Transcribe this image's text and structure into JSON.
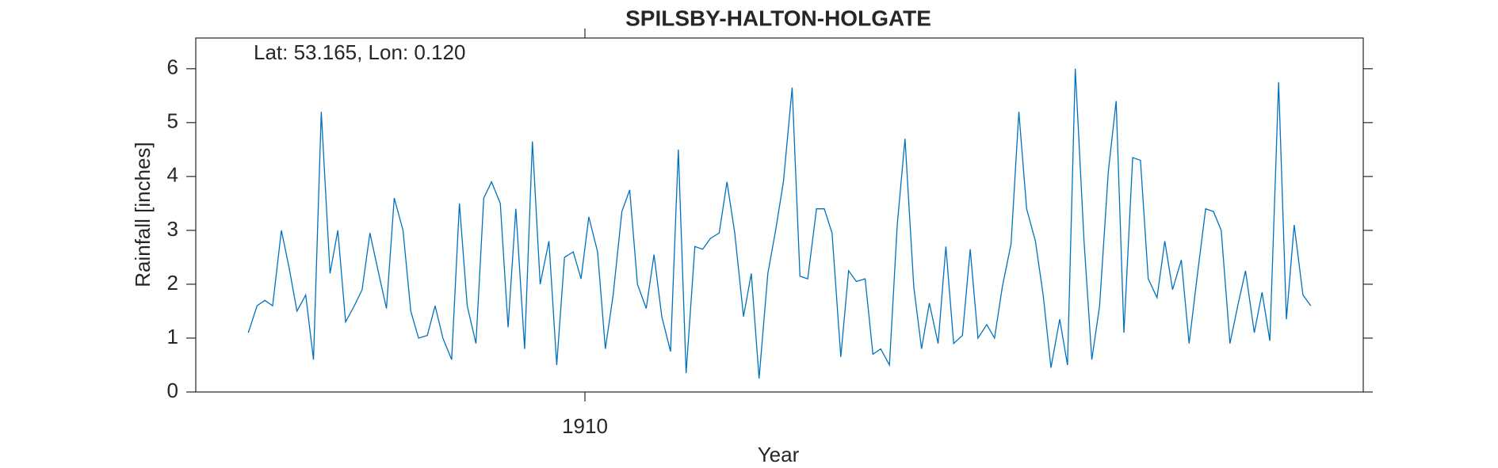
{
  "chart_data": {
    "type": "line",
    "title": "SPILSBY-HALTON-HOLGATE",
    "annotation": "Lat: 53.165, Lon: 0.120",
    "x_label": "Year",
    "y_label": "Rainfall [inches]",
    "color": "#0072bd",
    "xlim": [
      1906,
      1918
    ],
    "xticks": [
      1910
    ],
    "ylim": [
      0,
      6.57
    ],
    "yticks": [
      0,
      1,
      2,
      3,
      4,
      5,
      6
    ],
    "x": [
      1906.54,
      1906.63,
      1906.71,
      1906.79,
      1906.88,
      1906.96,
      1907.04,
      1907.13,
      1907.21,
      1907.29,
      1907.38,
      1907.46,
      1907.54,
      1907.63,
      1907.71,
      1907.79,
      1907.88,
      1907.96,
      1908.04,
      1908.13,
      1908.21,
      1908.29,
      1908.38,
      1908.46,
      1908.54,
      1908.63,
      1908.71,
      1908.79,
      1908.88,
      1908.96,
      1909.04,
      1909.13,
      1909.21,
      1909.29,
      1909.38,
      1909.46,
      1909.54,
      1909.63,
      1909.71,
      1909.79,
      1909.88,
      1909.96,
      1910.04,
      1910.13,
      1910.21,
      1910.29,
      1910.38,
      1910.46,
      1910.54,
      1910.63,
      1910.71,
      1910.79,
      1910.88,
      1910.96,
      1911.04,
      1911.13,
      1911.21,
      1911.29,
      1911.38,
      1911.46,
      1911.54,
      1911.63,
      1911.71,
      1911.79,
      1911.88,
      1911.96,
      1912.04,
      1912.13,
      1912.21,
      1912.29,
      1912.38,
      1912.46,
      1912.54,
      1912.63,
      1912.71,
      1912.79,
      1912.88,
      1912.96,
      1913.04,
      1913.13,
      1913.21,
      1913.29,
      1913.38,
      1913.46,
      1913.54,
      1913.63,
      1913.71,
      1913.79,
      1913.88,
      1913.96,
      1914.04,
      1914.13,
      1914.21,
      1914.29,
      1914.38,
      1914.46,
      1914.54,
      1914.63,
      1914.71,
      1914.79,
      1914.88,
      1914.96,
      1915.04,
      1915.13,
      1915.21,
      1915.29,
      1915.38,
      1915.46,
      1915.54,
      1915.63,
      1915.71,
      1915.79,
      1915.88,
      1915.96,
      1916.04,
      1916.13,
      1916.21,
      1916.29,
      1916.38,
      1916.46,
      1916.54,
      1916.63,
      1916.71,
      1916.79,
      1916.88,
      1916.96,
      1917.04,
      1917.13,
      1917.21,
      1917.29,
      1917.38,
      1917.46
    ],
    "values": [
      1.1,
      1.6,
      1.7,
      1.6,
      3.0,
      2.3,
      1.5,
      1.8,
      0.6,
      5.2,
      2.2,
      3.0,
      1.3,
      1.6,
      1.9,
      2.95,
      2.2,
      1.55,
      3.6,
      3.0,
      1.5,
      1.0,
      1.05,
      1.6,
      1.0,
      0.6,
      3.5,
      1.6,
      0.9,
      3.6,
      3.9,
      3.5,
      1.2,
      3.4,
      0.8,
      4.65,
      2.0,
      2.8,
      0.5,
      2.5,
      2.6,
      2.1,
      3.25,
      2.6,
      0.8,
      1.8,
      3.35,
      3.75,
      2.0,
      1.55,
      2.55,
      1.4,
      0.75,
      4.5,
      0.35,
      2.7,
      2.65,
      2.85,
      2.95,
      3.9,
      2.95,
      1.4,
      2.2,
      0.25,
      2.2,
      3.0,
      3.9,
      5.65,
      2.15,
      2.1,
      3.4,
      3.4,
      2.95,
      0.65,
      2.25,
      2.05,
      2.1,
      0.7,
      0.8,
      0.5,
      3.1,
      4.7,
      1.95,
      0.8,
      1.65,
      0.9,
      2.7,
      0.9,
      1.05,
      2.65,
      1.0,
      1.25,
      1.0,
      1.95,
      2.75,
      5.2,
      3.4,
      2.8,
      1.8,
      0.45,
      1.35,
      0.5,
      6.0,
      2.8,
      0.6,
      1.6,
      4.1,
      5.4,
      1.1,
      4.35,
      4.3,
      2.1,
      1.75,
      2.8,
      1.9,
      2.45,
      0.9,
      2.1,
      3.4,
      3.35,
      3.0,
      0.9,
      1.6,
      2.25,
      1.1,
      1.85,
      0.95,
      5.75,
      1.35,
      3.1,
      1.8,
      1.6
    ]
  }
}
